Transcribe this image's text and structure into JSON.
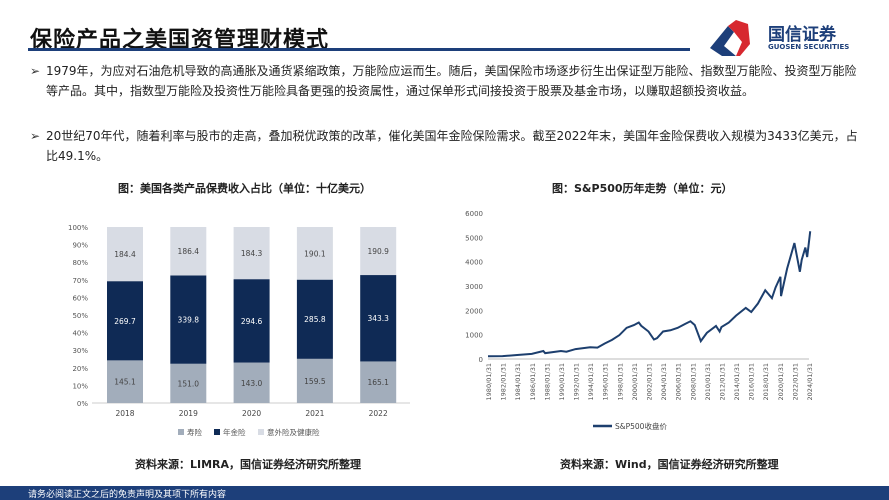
{
  "header": {
    "title": "保险产品之美国资管理财模式",
    "logo_cn": "国信证券",
    "logo_en": "GUOSEN SECURITIES"
  },
  "bullets": [
    "1979年，为应对石油危机导致的高通胀及通货紧缩政策，万能险应运而生。随后，美国保险市场逐步衍生出保证型万能险、指数型万能险、投资型万能险等产品。其中，指数型万能险及投资性万能险具备更强的投资属性，通过保单形式间接投资于股票及基金市场，以赚取超额投资收益。",
    "20世纪70年代，随着利率与股市的走高，叠加税优政策的改革，催化美国年金险保险需求。截至2022年末，美国年金险保费收入规模为3433亿美元，占比49.1%。"
  ],
  "bullet_icon": "arrow-right-icon",
  "left_chart": {
    "caption": "图：美国各类产品保费收入占比（单位：十亿美元）",
    "source": "资料来源：LIMRA，国信证券经济研究所整理"
  },
  "right_chart": {
    "caption": "图：S&P500历年走势（单位：元）",
    "source": "资料来源：Wind，国信证券经济研究所整理"
  },
  "footer": {
    "disclaimer": "请务必阅读正文之后的免责声明及其项下所有内容"
  },
  "colors": {
    "brand": "#1d3f7a",
    "life": "#a2adbb",
    "annuity": "#0f2a55",
    "accident": "#d8dce4",
    "logo_red": "#d7282f"
  },
  "chart_data": [
    {
      "type": "bar",
      "stacked": "percent",
      "categories": [
        "2018",
        "2019",
        "2020",
        "2021",
        "2022"
      ],
      "series": [
        {
          "name": "寿险",
          "values": [
            145.1,
            151.0,
            143.0,
            159.5,
            165.1
          ],
          "labels": [
            "145.1",
            "151.0",
            "143.0",
            "159.5",
            "165.1"
          ]
        },
        {
          "name": "年金险",
          "values": [
            269.7,
            339.8,
            294.6,
            285.8,
            343.3
          ],
          "labels": [
            "269.7",
            "339.8",
            "294.6",
            "285.8",
            "343.3"
          ]
        },
        {
          "name": "意外险及健康险",
          "values": [
            184.4,
            186.4,
            184.3,
            190.1,
            190.9
          ],
          "labels": [
            "184.4",
            "186.4",
            "184.3",
            "190.1",
            "190.9"
          ]
        }
      ],
      "ylim": [
        0,
        100
      ],
      "yticks": [
        "0%",
        "10%",
        "20%",
        "30%",
        "40%",
        "50%",
        "60%",
        "70%",
        "80%",
        "90%",
        "100%"
      ],
      "legend": "bottom",
      "grid": false
    },
    {
      "type": "line",
      "ylim": [
        0,
        6000
      ],
      "yticks": [
        "0",
        "1000",
        "2000",
        "3000",
        "4000",
        "5000",
        "6000"
      ],
      "xticks": [
        "1980/01/31",
        "1982/01/31",
        "1984/01/31",
        "1986/01/31",
        "1988/01/31",
        "1990/01/31",
        "1992/01/31",
        "1994/01/31",
        "1996/01/31",
        "1998/01/31",
        "2000/01/31",
        "2002/01/31",
        "2004/01/31",
        "2006/01/31",
        "2008/01/31",
        "2010/01/31",
        "2012/01/31",
        "2014/01/31",
        "2016/01/31",
        "2018/01/31",
        "2020/01/31",
        "2022/01/31",
        "2024/01/31"
      ],
      "legend": "bottom",
      "grid": false,
      "series": [
        {
          "name": "S&P500收盘价",
          "points": [
            [
              "1980/01",
              114
            ],
            [
              "1982/01",
              120
            ],
            [
              "1984/01",
              163
            ],
            [
              "1986/01",
              212
            ],
            [
              "1987/08",
              330
            ],
            [
              "1987/11",
              240
            ],
            [
              "1990/01",
              329
            ],
            [
              "1990/10",
              300
            ],
            [
              "1992/01",
              408
            ],
            [
              "1994/01",
              481
            ],
            [
              "1995/01",
              470
            ],
            [
              "1996/01",
              636
            ],
            [
              "1997/01",
              786
            ],
            [
              "1998/01",
              980
            ],
            [
              "1999/01",
              1280
            ],
            [
              "2000/01",
              1394
            ],
            [
              "2000/09",
              1500
            ],
            [
              "2001/01",
              1366
            ],
            [
              "2002/01",
              1130
            ],
            [
              "2002/10",
              800
            ],
            [
              "2003/03",
              855
            ],
            [
              "2004/01",
              1131
            ],
            [
              "2005/01",
              1181
            ],
            [
              "2006/01",
              1280
            ],
            [
              "2007/01",
              1438
            ],
            [
              "2007/10",
              1550
            ],
            [
              "2008/05",
              1400
            ],
            [
              "2009/03",
              735
            ],
            [
              "2010/01",
              1073
            ],
            [
              "2011/04",
              1360
            ],
            [
              "2011/10",
              1130
            ],
            [
              "2012/01",
              1312
            ],
            [
              "2013/01",
              1498
            ],
            [
              "2014/01",
              1782
            ],
            [
              "2015/05",
              2100
            ],
            [
              "2016/02",
              1930
            ],
            [
              "2017/01",
              2279
            ],
            [
              "2018/01",
              2824
            ],
            [
              "2018/12",
              2500
            ],
            [
              "2019/06",
              2940
            ],
            [
              "2020/02",
              3380
            ],
            [
              "2020/03",
              2585
            ],
            [
              "2021/01",
              3714
            ],
            [
              "2022/01",
              4766
            ],
            [
              "2022/10",
              3585
            ],
            [
              "2023/01",
              4077
            ],
            [
              "2023/07",
              4580
            ],
            [
              "2023/10",
              4190
            ],
            [
              "2024/03",
              5250
            ]
          ]
        }
      ]
    }
  ]
}
